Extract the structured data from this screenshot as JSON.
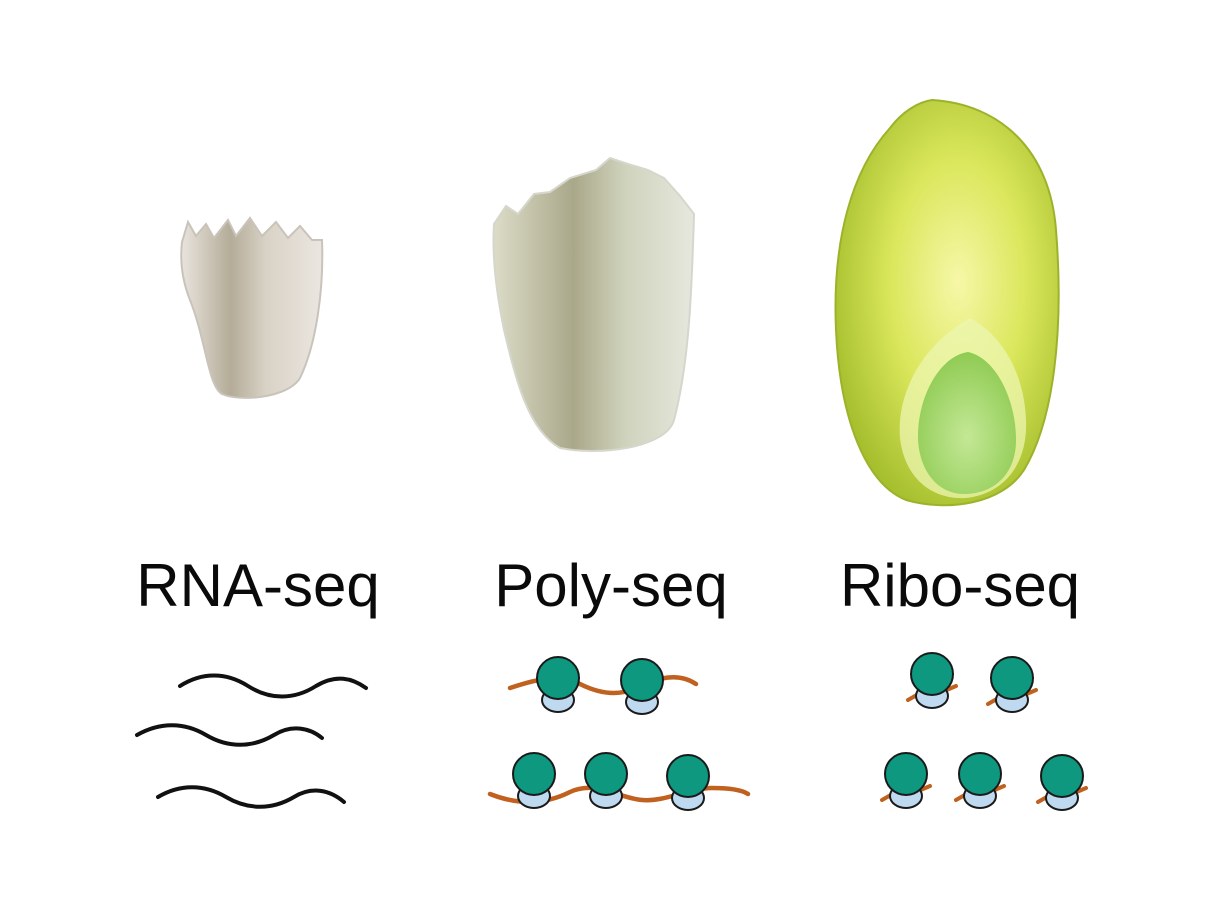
{
  "columns": [
    {
      "label": "RNA-seq",
      "seed": "small-white-seed",
      "molecules": "mrna"
    },
    {
      "label": "Poly-seq",
      "seed": "medium-pale-seed",
      "molecules": "polysome"
    },
    {
      "label": "Ribo-seq",
      "seed": "large-green-seed",
      "molecules": "ribosome-footprint"
    }
  ],
  "colors": {
    "mrna_black": "#111111",
    "mrna_orange": "#c0611f",
    "ribosome_large": "#0e9880",
    "ribosome_small": "#bfdaf0",
    "outline": "#1a1a1a",
    "seed_green": "#c8dc4a"
  }
}
